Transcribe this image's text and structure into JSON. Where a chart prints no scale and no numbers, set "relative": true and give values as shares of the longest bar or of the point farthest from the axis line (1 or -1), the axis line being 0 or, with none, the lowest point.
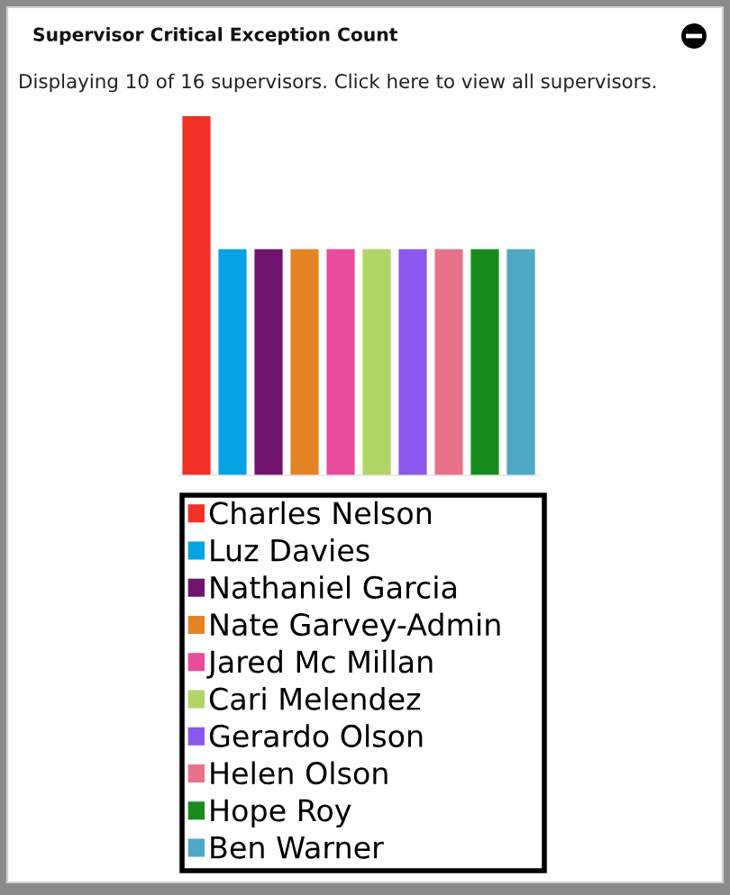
{
  "chart_data": {
    "type": "bar",
    "title": "Supervisor Critical Exception Count",
    "subtitle": "Displaying 10 of 16 supervisors. Click here to view all supervisors.",
    "categories": [
      null,
      null,
      null,
      null,
      null,
      null,
      null,
      null,
      null,
      null
    ],
    "series": [
      {
        "name": "Charles Nelson",
        "color": "#ee3124",
        "values": [
          1,
          null,
          null,
          null,
          null,
          null,
          null,
          null,
          null,
          null
        ]
      },
      {
        "name": "Luz Davies",
        "color": "#06a3e3",
        "values": [
          null,
          0.63,
          null,
          null,
          null,
          null,
          null,
          null,
          null,
          null
        ]
      },
      {
        "name": "Nathaniel Garcia",
        "color": "#70136c",
        "values": [
          null,
          null,
          0.63,
          null,
          null,
          null,
          null,
          null,
          null,
          null
        ]
      },
      {
        "name": "Nate Garvey-Admin",
        "color": "#e58424",
        "values": [
          null,
          null,
          null,
          0.63,
          null,
          null,
          null,
          null,
          null,
          null
        ]
      },
      {
        "name": "Jared Mc Millan",
        "color": "#e94b9d",
        "values": [
          null,
          null,
          null,
          null,
          0.63,
          null,
          null,
          null,
          null,
          null
        ]
      },
      {
        "name": "Cari Melendez",
        "color": "#b0d566",
        "values": [
          null,
          null,
          null,
          null,
          null,
          0.63,
          null,
          null,
          null,
          null
        ]
      },
      {
        "name": "Gerardo Olson",
        "color": "#8a58ec",
        "values": [
          null,
          null,
          null,
          null,
          null,
          null,
          0.63,
          null,
          null,
          null
        ]
      },
      {
        "name": "Helen Olson",
        "color": "#e8728a",
        "values": [
          null,
          null,
          null,
          null,
          null,
          null,
          null,
          0.63,
          null,
          null
        ]
      },
      {
        "name": "Hope Roy",
        "color": "#178c1d",
        "values": [
          null,
          null,
          null,
          null,
          null,
          null,
          null,
          null,
          0.63,
          null
        ]
      },
      {
        "name": "Ben Warner",
        "color": "#4fa8c4",
        "values": [
          null,
          null,
          null,
          null,
          null,
          null,
          null,
          null,
          null,
          0.63
        ]
      }
    ],
    "stacked": true,
    "relative": true,
    "legend": "bottom"
  }
}
